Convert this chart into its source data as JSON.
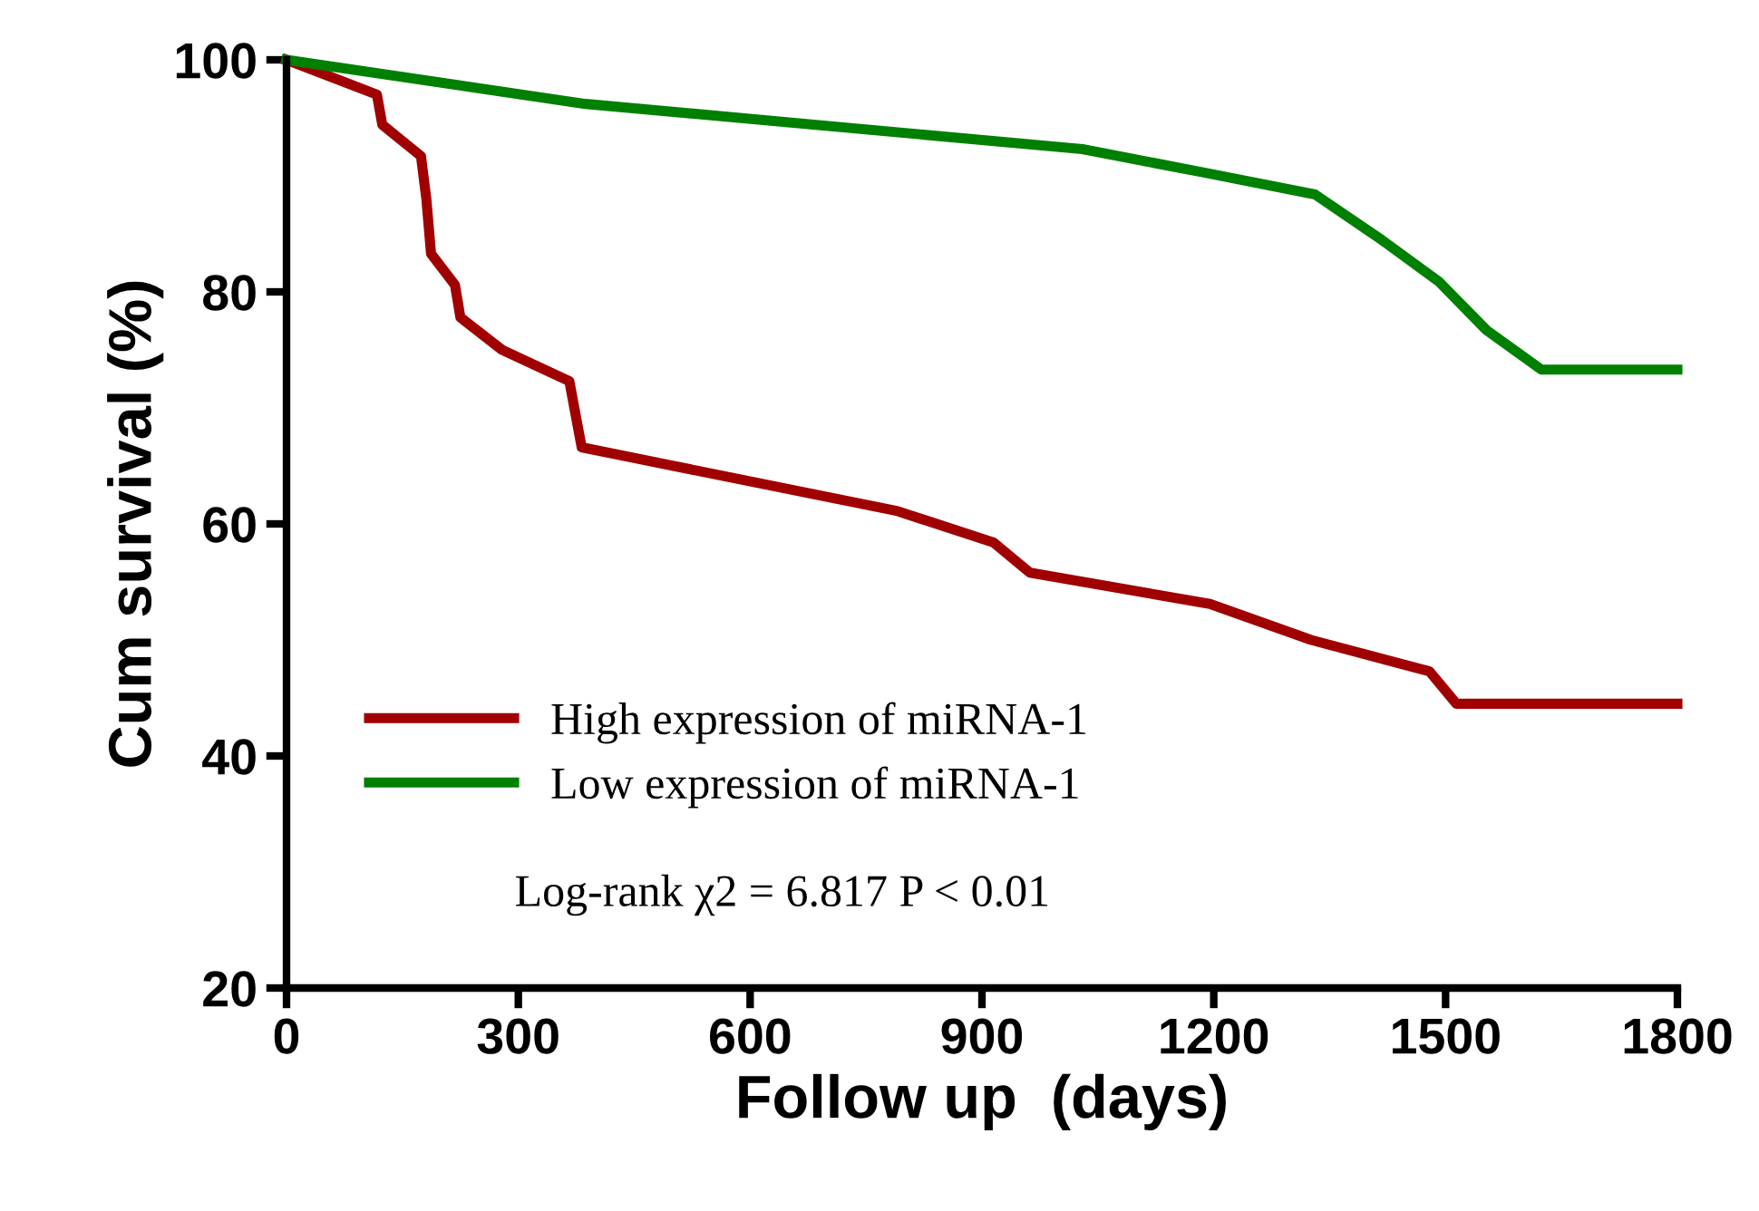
{
  "chart_data": {
    "type": "line",
    "xlabel": "Follow up  (days)",
    "ylabel": "Cum survival (%)",
    "series": [
      {
        "name": "High expression of miRNA-1",
        "color": "#a00000",
        "x": [
          0,
          117,
          124,
          174,
          181,
          187,
          218,
          225,
          279,
          366,
          382,
          791,
          915,
          962,
          1195,
          1326,
          1479,
          1514,
          1800
        ],
        "values": [
          100,
          97.0,
          94.4,
          91.7,
          88.0,
          83.3,
          80.6,
          77.8,
          75.0,
          72.3,
          66.6,
          61.1,
          58.4,
          55.8,
          53.1,
          50.0,
          47.3,
          44.5,
          44.5
        ]
      },
      {
        "name": "Low expression of miRNA-1",
        "color": "#008000",
        "x": [
          0,
          387,
          685,
          1030,
          1186,
          1331,
          1417,
          1491,
          1553,
          1624,
          1800
        ],
        "values": [
          100,
          96.2,
          94.4,
          92.3,
          90.3,
          88.4,
          84.5,
          80.9,
          76.7,
          73.3,
          73.3
        ]
      }
    ],
    "xlim": [
      0,
      1800
    ],
    "xticks": [
      0,
      300,
      600,
      900,
      1200,
      1500,
      1800
    ],
    "ylim": [
      20,
      100
    ],
    "yticks": [
      20,
      40,
      60,
      80,
      100
    ],
    "grid": false,
    "legend": "bottom left",
    "marker": "none",
    "line_style": "solid",
    "annotations": [
      "Log-rank χ2 = 6.817 P < 0.01"
    ]
  }
}
